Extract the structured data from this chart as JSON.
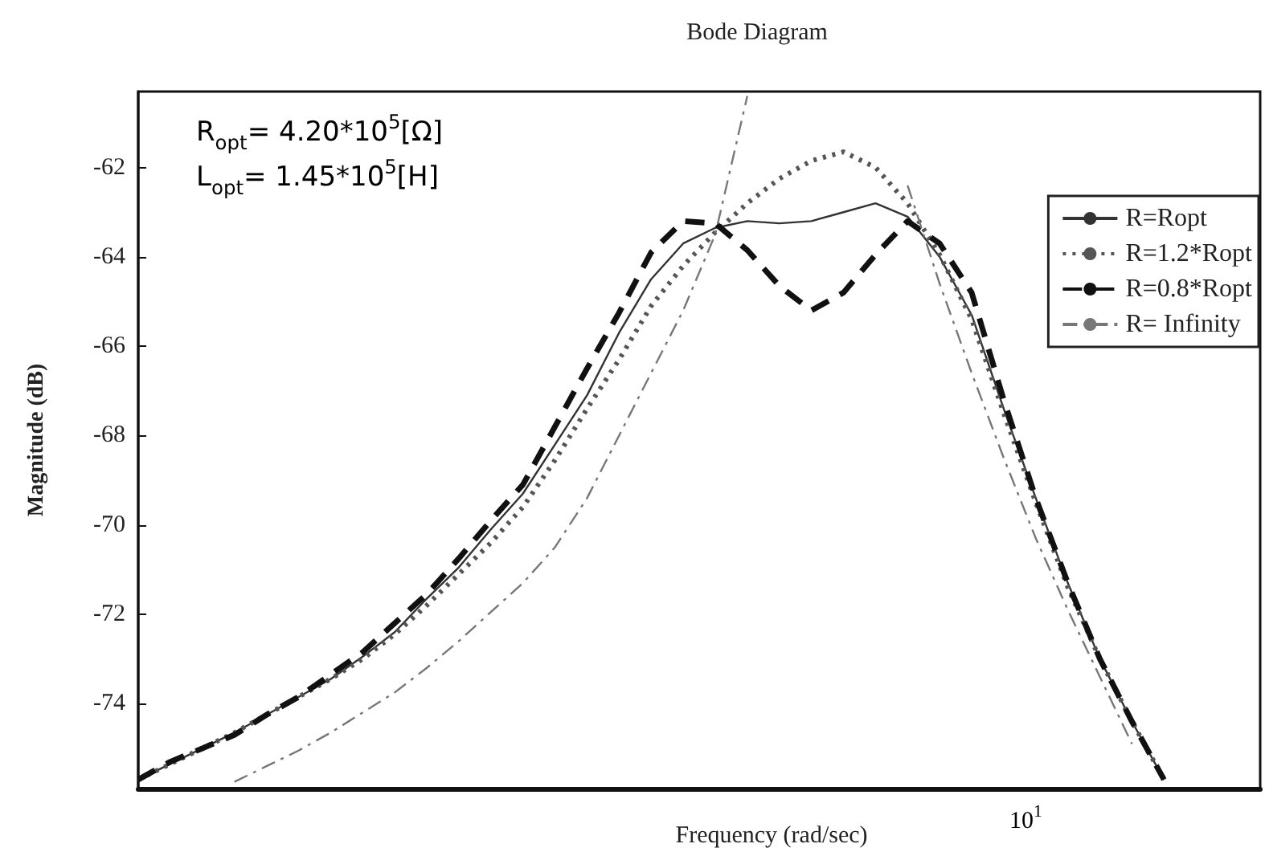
{
  "chart_data": {
    "type": "line",
    "title": "Bode Diagram",
    "xlabel": "Frequency (rad/sec)",
    "ylabel": "Magnitude (dB)",
    "annotations": [
      "R$_{opt}$= 4.20*10$^{5}$[Ω]",
      "L$_{opt}$= 1.45*10$^{5}$[H]",
      "10$^{1}$"
    ],
    "grid": false,
    "legend": "right",
    "marker": "none",
    "categories": [
      null,
      null,
      null,
      null,
      null,
      null,
      null,
      null,
      null,
      null,
      null,
      null,
      null,
      null,
      null,
      null,
      null,
      null,
      null,
      null,
      null,
      null,
      null,
      null,
      null,
      null,
      null,
      null,
      null,
      null,
      null,
      null,
      null,
      null,
      null,
      null
    ],
    "ylim": [
      -75.9,
      -60.3
    ],
    "yticks": [
      -74,
      -72,
      -70,
      -68,
      -66,
      -64,
      -62
    ],
    "series": [
      {
        "name": "R=Ropt",
        "color": "#333333",
        "line_style": "solid",
        "values": [
          -75.7,
          -75.35,
          -75.0,
          -74.65,
          -74.25,
          -73.85,
          -73.45,
          -72.95,
          -72.4,
          -71.65,
          -70.95,
          -70.1,
          -69.3,
          -68.2,
          -67.1,
          -65.7,
          -64.5,
          -63.7,
          -63.35,
          -63.2,
          -63.25,
          -63.2,
          -63.0,
          -62.8,
          -63.1,
          -64.0,
          -65.3,
          -67.4,
          -69.4,
          -71.3,
          -73.0,
          -74.4,
          -75.7,
          null,
          null,
          null
        ]
      },
      {
        "name": "R=1.2*Ropt",
        "color": "#555555",
        "line_style": "dotted",
        "values": [
          -75.7,
          -75.35,
          -75.0,
          -74.65,
          -74.25,
          -73.85,
          -73.45,
          -73.0,
          -72.45,
          -71.8,
          -71.1,
          -70.4,
          -69.6,
          -68.55,
          -67.4,
          -66.3,
          -65.1,
          -64.2,
          -63.45,
          -62.8,
          -62.25,
          -61.85,
          -61.65,
          -62.0,
          -62.8,
          -63.95,
          -65.4,
          -67.5,
          -69.5,
          -71.4,
          -73.0,
          -74.4,
          -75.7,
          null,
          null,
          null
        ]
      },
      {
        "name": "R=0.8*Ropt",
        "color": "#111111",
        "line_style": "dashed",
        "values": [
          -75.7,
          -75.3,
          -75.0,
          -74.7,
          -74.25,
          -73.85,
          -73.35,
          -72.85,
          -72.2,
          -71.55,
          -70.75,
          -69.9,
          -69.1,
          -67.8,
          -66.5,
          -65.25,
          -63.9,
          -63.2,
          -63.25,
          -63.85,
          -64.65,
          -65.2,
          -64.8,
          -63.95,
          -63.2,
          -63.7,
          -64.8,
          -67.2,
          -69.4,
          -71.3,
          -73.0,
          -74.4,
          -75.7,
          null,
          null,
          null
        ]
      },
      {
        "name": "R= Infinity",
        "color": "#777777",
        "line_style": "dashdot",
        "values": [
          null,
          null,
          null,
          -75.75,
          -75.4,
          -75.05,
          -74.65,
          -74.2,
          -73.75,
          -73.2,
          -72.6,
          -71.95,
          -71.3,
          -70.5,
          -69.4,
          -68.0,
          -66.6,
          -65.2,
          -63.5,
          -60.4,
          null,
          null,
          null,
          null,
          -62.4,
          -64.6,
          -66.6,
          -68.5,
          -70.3,
          -71.9,
          -73.4,
          -74.9,
          null,
          null,
          null,
          null
        ]
      }
    ]
  }
}
